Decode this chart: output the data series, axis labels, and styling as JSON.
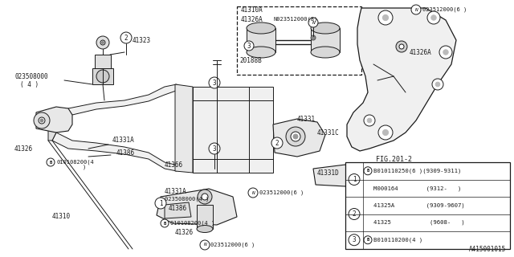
{
  "bg_color": "#ffffff",
  "line_color": "#1a1a1a",
  "fig_width": 6.4,
  "fig_height": 3.2,
  "dpi": 100,
  "part_number_footer": "A415001015",
  "legend_rows": [
    {
      "num": "1",
      "line1": "B010110250(6 )(9309-9311)",
      "line2": "M000164         (9312-   )"
    },
    {
      "num": "2",
      "line1": "41325A         (9309-9607)",
      "line2": "41325           (9608-   )"
    },
    {
      "num": "3",
      "line1": "B010110200(4 )",
      "line2": ""
    }
  ]
}
